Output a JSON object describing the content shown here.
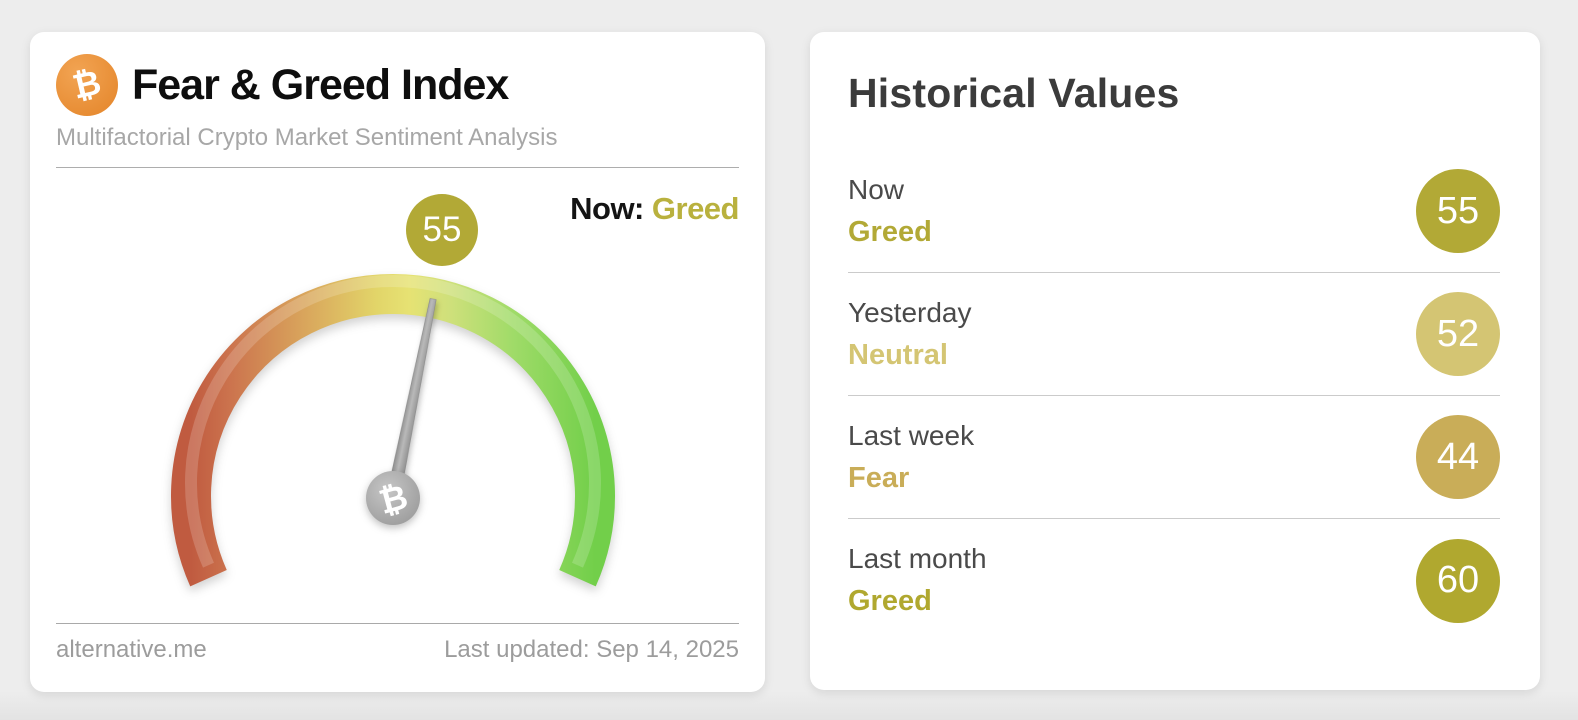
{
  "left_card": {
    "title": "Fear & Greed Index",
    "subtitle": "Multifactorial Crypto Market Sentiment Analysis",
    "bitcoin_symbol": "₿",
    "now_label": "Now:",
    "now_classification": "Greed",
    "gauge_value": "55",
    "footer_source": "alternative.me",
    "footer_updated": "Last updated: Sep 14, 2025"
  },
  "right_card": {
    "title": "Historical Values",
    "rows": [
      {
        "label": "Now",
        "classification": "Greed",
        "value": "55",
        "color": "#b2a936"
      },
      {
        "label": "Yesterday",
        "classification": "Neutral",
        "value": "52",
        "color": "#d4c573"
      },
      {
        "label": "Last week",
        "classification": "Fear",
        "value": "44",
        "color": "#c9ad58"
      },
      {
        "label": "Last month",
        "classification": "Greed",
        "value": "60",
        "color": "#b0a82f"
      }
    ]
  },
  "colors": {
    "accent_greed": "#b9b13e",
    "bitcoin_orange": "#e78c33",
    "needle_gray": "#9a9a9a",
    "gauge_gradient": [
      "#c05b40",
      "#cc744e",
      "#d9a55c",
      "#e2d569",
      "#e6e273",
      "#cfe07b",
      "#9fdb68",
      "#72cf4a"
    ]
  },
  "chart_data": {
    "type": "gauge",
    "title": "Fear & Greed Index",
    "subtitle": "Multifactorial Crypto Market Sentiment Analysis",
    "value": 55,
    "classification": "Greed",
    "range": [
      0,
      100
    ],
    "arc_degrees": 228,
    "scale_colors": "red (0, Extreme Fear) through yellow (50, Neutral) to green (100, Extreme Greed)",
    "source": "alternative.me",
    "last_updated": "Sep 14, 2025",
    "historical": [
      {
        "period": "Now",
        "classification": "Greed",
        "value": 55
      },
      {
        "period": "Yesterday",
        "classification": "Neutral",
        "value": 52
      },
      {
        "period": "Last week",
        "classification": "Fear",
        "value": 44
      },
      {
        "period": "Last month",
        "classification": "Greed",
        "value": 60
      }
    ]
  }
}
